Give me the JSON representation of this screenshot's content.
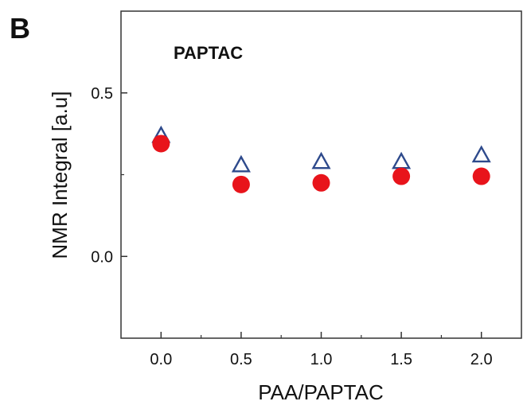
{
  "panel_label": "B",
  "chart_data": {
    "type": "scatter",
    "title": "PAPTAC",
    "xlabel": "PAA/PAPTAC",
    "ylabel": "NMR Integral [a.u]",
    "xlim": [
      -0.25,
      2.25
    ],
    "ylim": [
      -0.25,
      0.75
    ],
    "xticks": [
      "0.0",
      "0.5",
      "1.0",
      "1.5",
      "2.0"
    ],
    "yticks": [
      "0.0",
      "0.5"
    ],
    "grid": false,
    "series": [
      {
        "marker": "open-triangle",
        "color": "#2e4a8c",
        "x": [
          0.0,
          0.5,
          1.0,
          1.5,
          2.0
        ],
        "y": [
          0.37,
          0.28,
          0.29,
          0.29,
          0.31
        ]
      },
      {
        "marker": "filled-circle",
        "color": "#e8141b",
        "x": [
          0.0,
          0.5,
          1.0,
          1.5,
          2.0
        ],
        "y": [
          0.345,
          0.22,
          0.225,
          0.245,
          0.245
        ]
      }
    ]
  }
}
